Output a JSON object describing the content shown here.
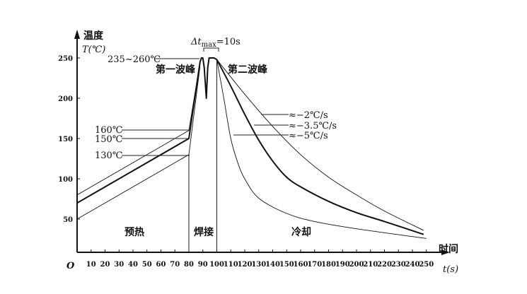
{
  "chart_data": {
    "type": "line",
    "title": "",
    "xlabel": "时间",
    "xunit": "t(s)",
    "ylabel": "温度",
    "yunit": "T(℃)",
    "origin_label": "O",
    "xlim": [
      0,
      255
    ],
    "ylim": [
      0,
      265
    ],
    "xticks": [
      10,
      20,
      30,
      40,
      50,
      60,
      70,
      80,
      90,
      100,
      110,
      120,
      130,
      140,
      150,
      160,
      170,
      180,
      190,
      200,
      210,
      220,
      230,
      240,
      250
    ],
    "yticks": [
      50,
      100,
      150,
      200,
      250
    ],
    "grid": false,
    "series": [
      {
        "style": "thin",
        "points": [
          [
            0,
            80
          ],
          [
            80,
            160
          ],
          [
            88,
            245
          ]
        ]
      },
      {
        "style": "thick",
        "points": [
          [
            0,
            70
          ],
          [
            80,
            150
          ],
          [
            88,
            245
          ],
          [
            89,
            250
          ],
          [
            90,
            250
          ],
          [
            91,
            238
          ],
          [
            92.5,
            200
          ],
          [
            93.5,
            238
          ],
          [
            94.5,
            250
          ],
          [
            98,
            250
          ],
          [
            100,
            248
          ]
        ]
      },
      {
        "style": "thin",
        "points": [
          [
            0,
            50
          ],
          [
            80,
            130
          ],
          [
            88,
            240
          ]
        ]
      },
      {
        "style": "thin",
        "name": "≈−5℃/s",
        "points": [
          [
            100,
            248
          ],
          [
            105,
            200
          ],
          [
            110,
            150
          ],
          [
            115,
            120
          ],
          [
            120,
            100
          ],
          [
            130,
            76
          ],
          [
            150,
            57
          ],
          [
            170,
            47
          ],
          [
            200,
            38
          ],
          [
            250,
            26
          ]
        ]
      },
      {
        "style": "thick",
        "name": "≈−3.5℃/s",
        "points": [
          [
            100,
            248
          ],
          [
            110,
            215
          ],
          [
            120,
            180
          ],
          [
            130,
            148
          ],
          [
            140,
            122
          ],
          [
            150,
            102
          ],
          [
            160,
            90
          ],
          [
            180,
            72
          ],
          [
            200,
            58
          ],
          [
            220,
            47
          ],
          [
            248,
            31
          ]
        ]
      },
      {
        "style": "thin",
        "name": "≈−2℃/s",
        "points": [
          [
            100,
            248
          ],
          [
            120,
            205
          ],
          [
            140,
            165
          ],
          [
            160,
            130
          ],
          [
            180,
            102
          ],
          [
            200,
            80
          ],
          [
            220,
            60
          ],
          [
            248,
            36
          ]
        ]
      }
    ],
    "annotations": {
      "peak_range": "235~260℃",
      "first_wave": "第一波峰",
      "second_wave": "第二波峰",
      "dt_max_prefix": "Δt",
      "dt_max_sub": "max",
      "dt_max_value": "=10s",
      "t160": "160℃",
      "t150": "150℃",
      "t130": "130℃",
      "rate2": "≈−2℃/s",
      "rate35": "≈−3.5℃/s",
      "rate5": "≈−5℃/s",
      "zone_preheat": "预热",
      "zone_solder": "焊接",
      "zone_cool": "冷却"
    },
    "zone_boundaries": [
      80,
      100
    ]
  }
}
